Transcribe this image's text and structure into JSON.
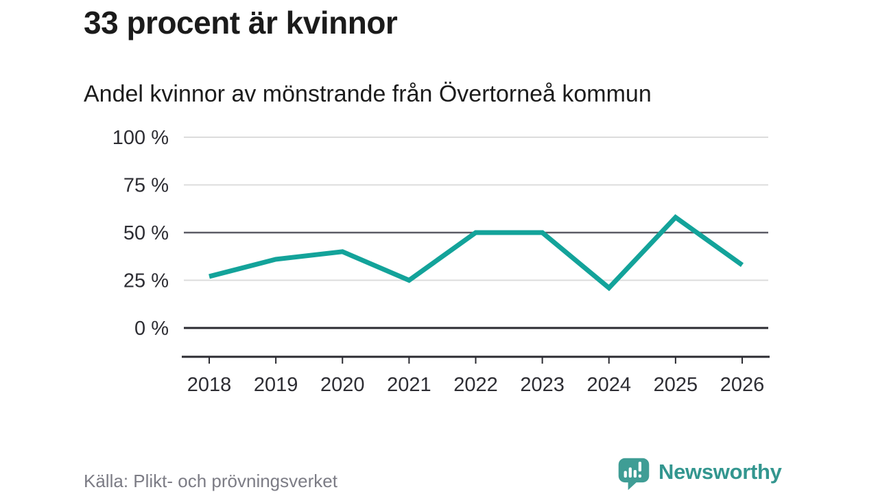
{
  "header": {
    "title": "33 procent är kvinnor",
    "subtitle": "Andel kvinnor av mönstrande från Övertorneå kommun"
  },
  "chart_data": {
    "type": "line",
    "title": "33 procent är kvinnor",
    "subtitle": "Andel kvinnor av mönstrande från Övertorneå kommun",
    "categories": [
      "2018",
      "2019",
      "2020",
      "2021",
      "2022",
      "2023",
      "2024",
      "2025",
      "2026"
    ],
    "values": [
      27,
      36,
      40,
      25,
      50,
      50,
      21,
      58,
      33
    ],
    "unit": "%",
    "ylim": [
      0,
      100
    ],
    "yticks": [
      0,
      25,
      50,
      75,
      100
    ],
    "ytick_labels": [
      "0 %",
      "25 %",
      "50 %",
      "75 %",
      "100 %"
    ],
    "emphasized_gridline": 50,
    "grid": "horizontal",
    "legend": "none",
    "line_color": "#13a39a",
    "gridline_color": "#dcdcdc",
    "emphasis_gridline_color": "#5b5b65",
    "axis_color": "#2b2b31"
  },
  "footer": {
    "source": "Källa: Plikt- och prövningsverket",
    "brand": "Newsworthy",
    "brand_color": "#33968f",
    "logo_icon": "newsworthy-speech-bubble-chart-icon",
    "logo_color": "#3f9d95"
  }
}
